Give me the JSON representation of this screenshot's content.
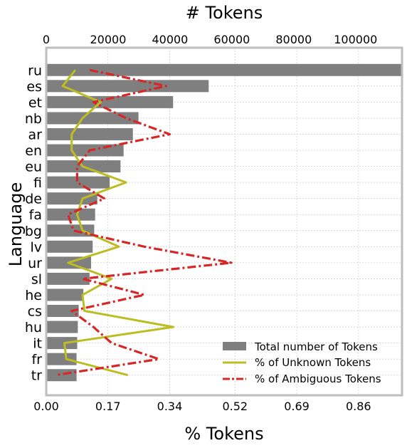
{
  "chart_data": {
    "type": "bar",
    "orientation": "horizontal",
    "categories": [
      "ru",
      "es",
      "et",
      "nb",
      "ar",
      "en",
      "eu",
      "fi",
      "de",
      "fa",
      "bg",
      "lv",
      "ur",
      "sl",
      "he",
      "cs",
      "hu",
      "it",
      "fr",
      "tr"
    ],
    "top_axis": {
      "label": "# Tokens",
      "ticks": [
        "0",
        "20000",
        "40000",
        "60000",
        "80000",
        "100000"
      ],
      "lim": [
        0,
        115000
      ]
    },
    "bottom_axis": {
      "label": "% Tokens",
      "ticks": [
        "0.00",
        "0.17",
        "0.34",
        "0.52",
        "0.69",
        "0.86"
      ],
      "lim": [
        0,
        0.98
      ]
    },
    "ylabel": "Language",
    "grid": true,
    "legend_position": "bottom-right",
    "series": [
      {
        "name": "Total number of Tokens",
        "kind": "bar",
        "axis": "top",
        "color": "#7f7f7f",
        "values": [
          115000,
          52500,
          41000,
          29800,
          28000,
          25000,
          24000,
          20500,
          16500,
          15800,
          15500,
          15000,
          14500,
          14000,
          12000,
          10500,
          10200,
          10000,
          9800,
          9800
        ]
      },
      {
        "name": "% of Unknown Tokens",
        "kind": "line",
        "style": "solid",
        "axis": "bottom",
        "color": "#bcbd22",
        "values": [
          0.08,
          0.045,
          0.15,
          0.1,
          0.07,
          0.07,
          0.1,
          0.22,
          0.1,
          0.085,
          0.1,
          0.2,
          0.06,
          0.18,
          0.1,
          0.105,
          0.35,
          0.05,
          0.055,
          0.225
        ]
      },
      {
        "name": "% of Ambiguous Tokens",
        "kind": "line",
        "style": "dashdot",
        "axis": "bottom",
        "color": "#d62728",
        "values": [
          0.12,
          0.33,
          0.13,
          0.22,
          0.34,
          0.12,
          0.085,
          0.085,
          0.16,
          0.06,
          0.075,
          0.27,
          0.51,
          0.1,
          0.27,
          0.07,
          0.13,
          0.18,
          0.31,
          0.025
        ]
      }
    ]
  }
}
